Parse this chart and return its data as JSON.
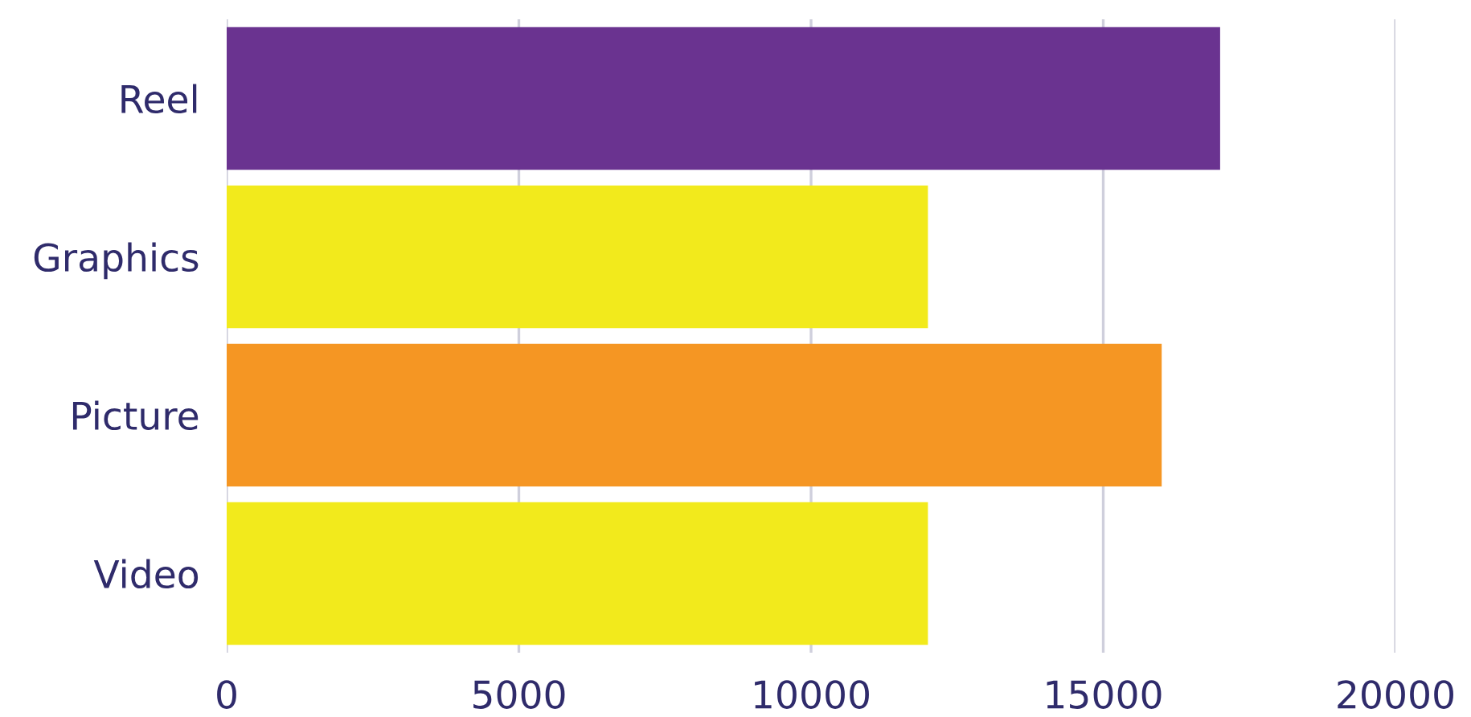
{
  "chart_data": {
    "type": "bar",
    "orientation": "horizontal",
    "categories": [
      "Reel",
      "Graphics",
      "Picture",
      "Video"
    ],
    "values": [
      17000,
      12000,
      16000,
      12000
    ],
    "colors": [
      "#6a3390",
      "#f2ea1c",
      "#f59623",
      "#f2ea1c"
    ],
    "xlim": [
      0,
      20000
    ],
    "xticks": [
      0,
      5000,
      10000,
      15000,
      20000
    ],
    "grid": "x",
    "legend": false
  }
}
